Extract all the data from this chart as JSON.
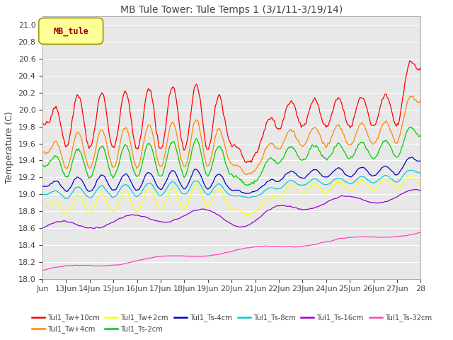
{
  "title": "MB Tule Tower: Tule Temps 1 (3/1/11-3/19/14)",
  "ylabel": "Temperature (C)",
  "ylim": [
    18.0,
    21.1
  ],
  "yticks": [
    18.0,
    18.2,
    18.4,
    18.6,
    18.8,
    19.0,
    19.2,
    19.4,
    19.6,
    19.8,
    20.0,
    20.2,
    20.4,
    20.6,
    20.8,
    21.0
  ],
  "x_labels": [
    "Jun",
    "13Jun",
    "14Jun",
    "15Jun",
    "16Jun",
    "17Jun",
    "18Jun",
    "19Jun",
    "20Jun",
    "21Jun",
    "22Jun",
    "23Jun",
    "24Jun",
    "25Jun",
    "26Jun",
    "27Jun",
    "28"
  ],
  "legend_box_color": "#ffff99",
  "legend_box_label": "MB_tule",
  "bg_color": "#e8e8e8",
  "series": [
    {
      "name": "Tul1_Tw+10cm",
      "color": "#ff0000"
    },
    {
      "name": "Tul1_Tw+4cm",
      "color": "#ff8800"
    },
    {
      "name": "Tul1_Tw+2cm",
      "color": "#ffff00"
    },
    {
      "name": "Tul1_Ts-2cm",
      "color": "#00cc00"
    },
    {
      "name": "Tul1_Ts-4cm",
      "color": "#0000cc"
    },
    {
      "name": "Tul1_Ts-8cm",
      "color": "#00cccc"
    },
    {
      "name": "Tul1_Ts-16cm",
      "color": "#9900cc"
    },
    {
      "name": "Tul1_Ts-32cm",
      "color": "#ff44bb"
    }
  ]
}
